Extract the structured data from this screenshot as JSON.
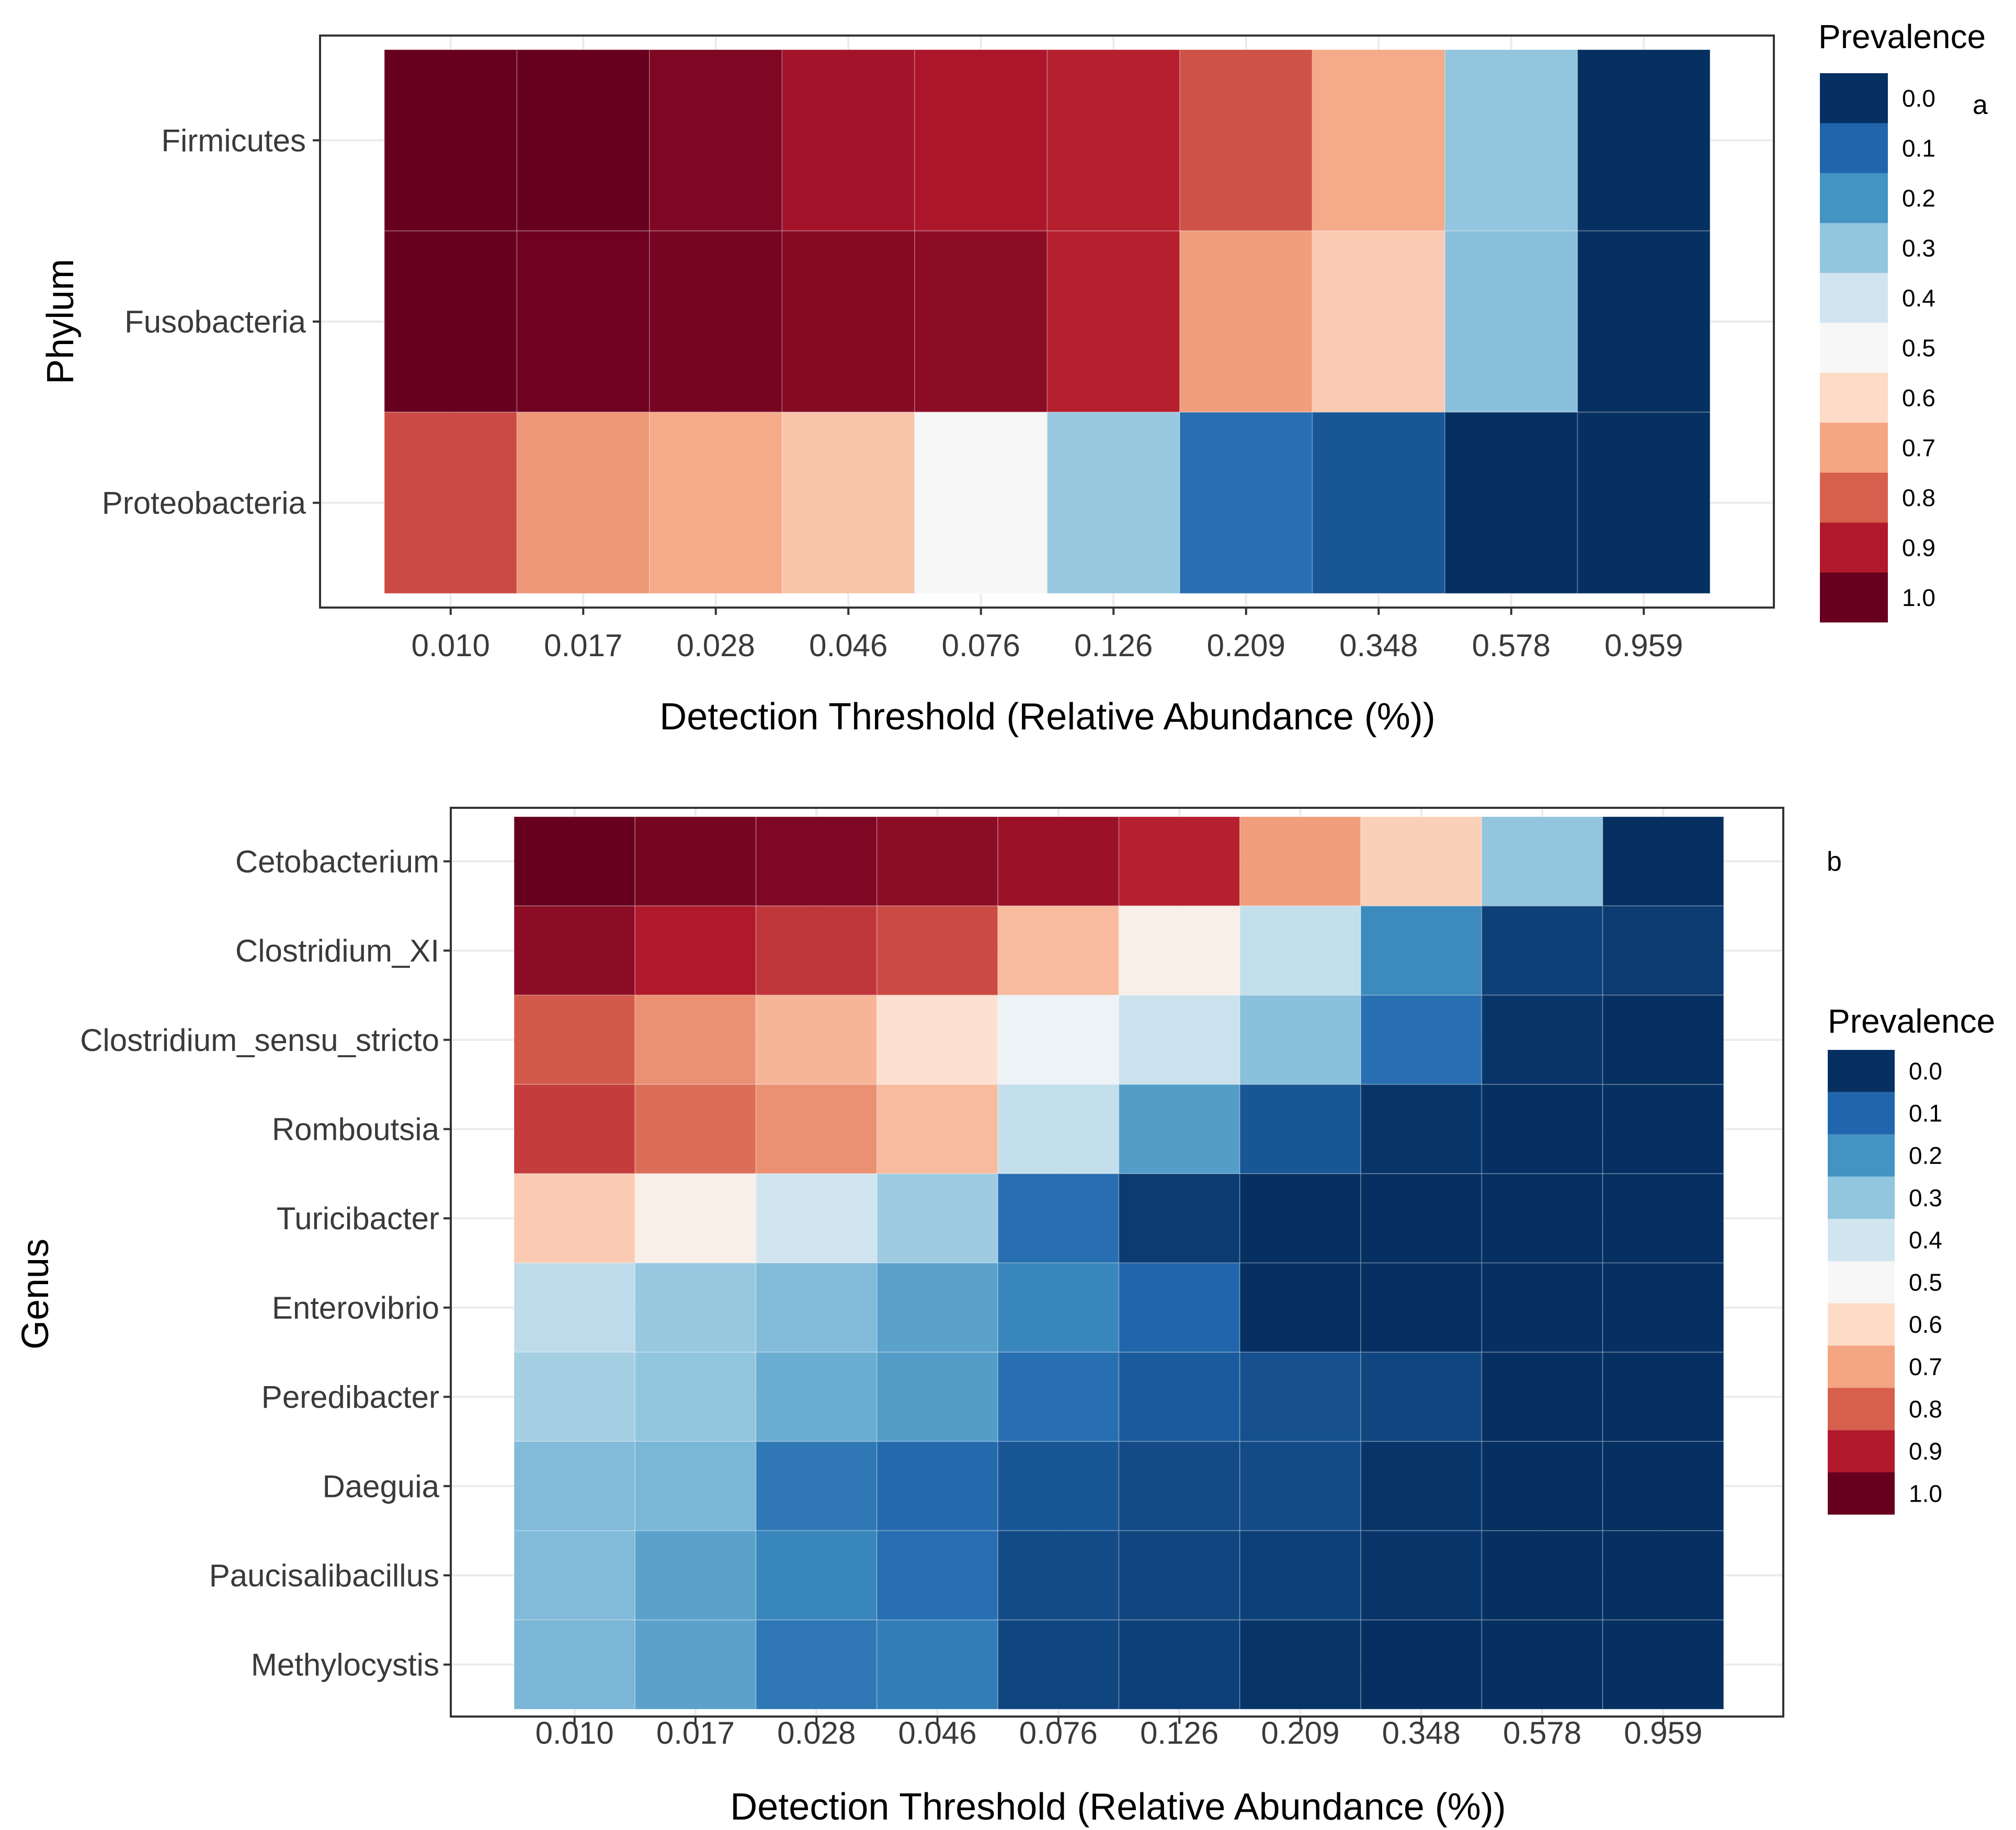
{
  "legend": {
    "title": "Prevalence",
    "entries": [
      "0.0",
      "0.1",
      "0.2",
      "0.3",
      "0.4",
      "0.5",
      "0.6",
      "0.7",
      "0.8",
      "0.9",
      "1.0"
    ]
  },
  "palette": {
    "stops": [
      "#053061",
      "#2166ac",
      "#4393c3",
      "#92c5de",
      "#d1e5f0",
      "#f7f7f7",
      "#fddbc7",
      "#f4a582",
      "#d6604d",
      "#b2182b",
      "#67001f"
    ]
  },
  "chart_data": [
    {
      "type": "heatmap",
      "panel_tag": "a",
      "xlabel": "Detection Threshold (Relative Abundance (%))",
      "ylabel": "Phylum",
      "x_categories": [
        "0.010",
        "0.017",
        "0.028",
        "0.046",
        "0.076",
        "0.126",
        "0.209",
        "0.348",
        "0.578",
        "0.959"
      ],
      "y_categories": [
        "Firmicutes",
        "Fusobacteria",
        "Proteobacteria"
      ],
      "values": [
        [
          1.0,
          1.0,
          0.97,
          0.92,
          0.91,
          0.89,
          0.82,
          0.69,
          0.3,
          0.0
        ],
        [
          1.0,
          0.99,
          0.98,
          0.96,
          0.95,
          0.89,
          0.71,
          0.63,
          0.29,
          0.0
        ],
        [
          0.83,
          0.72,
          0.69,
          0.64,
          0.5,
          0.31,
          0.12,
          0.07,
          0.0,
          0.0
        ]
      ],
      "colorbar_range": [
        0,
        1
      ]
    },
    {
      "type": "heatmap",
      "panel_tag": "b",
      "xlabel": "Detection Threshold (Relative Abundance (%))",
      "ylabel": "Genus",
      "x_categories": [
        "0.010",
        "0.017",
        "0.028",
        "0.046",
        "0.076",
        "0.126",
        "0.209",
        "0.348",
        "0.578",
        "0.959"
      ],
      "y_categories": [
        "Cetobacterium",
        "Clostridium_XI",
        "Clostridium_sensu_stricto",
        "Romboutsia",
        "Turicibacter",
        "Enterovibrio",
        "Peredibacter",
        "Daeguia",
        "Paucisalibacillus",
        "Methylocystis"
      ],
      "values": [
        [
          1.0,
          0.98,
          0.97,
          0.95,
          0.93,
          0.89,
          0.71,
          0.62,
          0.3,
          0.0
        ],
        [
          0.95,
          0.9,
          0.86,
          0.83,
          0.66,
          0.53,
          0.38,
          0.18,
          0.03,
          0.02
        ],
        [
          0.81,
          0.73,
          0.67,
          0.58,
          0.47,
          0.39,
          0.29,
          0.12,
          0.01,
          0.0
        ],
        [
          0.85,
          0.78,
          0.73,
          0.66,
          0.38,
          0.22,
          0.07,
          0.01,
          0.0,
          0.0
        ],
        [
          0.63,
          0.53,
          0.4,
          0.32,
          0.12,
          0.02,
          0.0,
          0.0,
          0.0,
          0.0
        ],
        [
          0.37,
          0.31,
          0.28,
          0.23,
          0.17,
          0.1,
          0.0,
          0.0,
          0.0,
          0.0
        ],
        [
          0.33,
          0.3,
          0.25,
          0.22,
          0.12,
          0.08,
          0.06,
          0.04,
          0.0,
          0.0
        ],
        [
          0.28,
          0.27,
          0.14,
          0.11,
          0.07,
          0.05,
          0.05,
          0.01,
          0.0,
          0.0
        ],
        [
          0.28,
          0.23,
          0.17,
          0.12,
          0.05,
          0.04,
          0.03,
          0.01,
          0.0,
          0.0
        ],
        [
          0.27,
          0.23,
          0.14,
          0.15,
          0.04,
          0.03,
          0.01,
          0.0,
          0.0,
          0.0
        ]
      ],
      "colorbar_range": [
        0,
        1
      ]
    }
  ]
}
